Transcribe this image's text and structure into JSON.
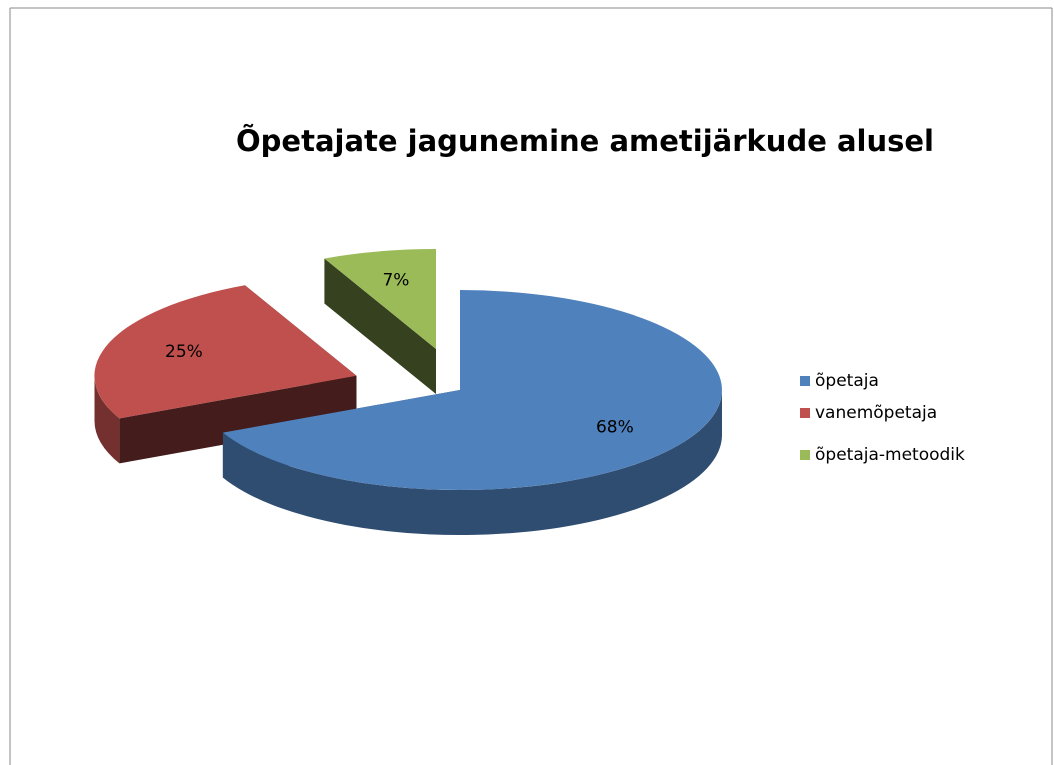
{
  "chart_data": {
    "type": "pie",
    "title": "Õpetajate jagunemine ametijärkude alusel",
    "categories": [
      "õpetaja",
      "vanemõpetaja",
      "õpetaja-metoodik"
    ],
    "values": [
      68,
      25,
      7
    ],
    "value_labels": [
      "68%",
      "25%",
      "7%"
    ],
    "colors": [
      "#4f81bd",
      "#c0504d",
      "#9bbb59"
    ],
    "legend": "right"
  }
}
